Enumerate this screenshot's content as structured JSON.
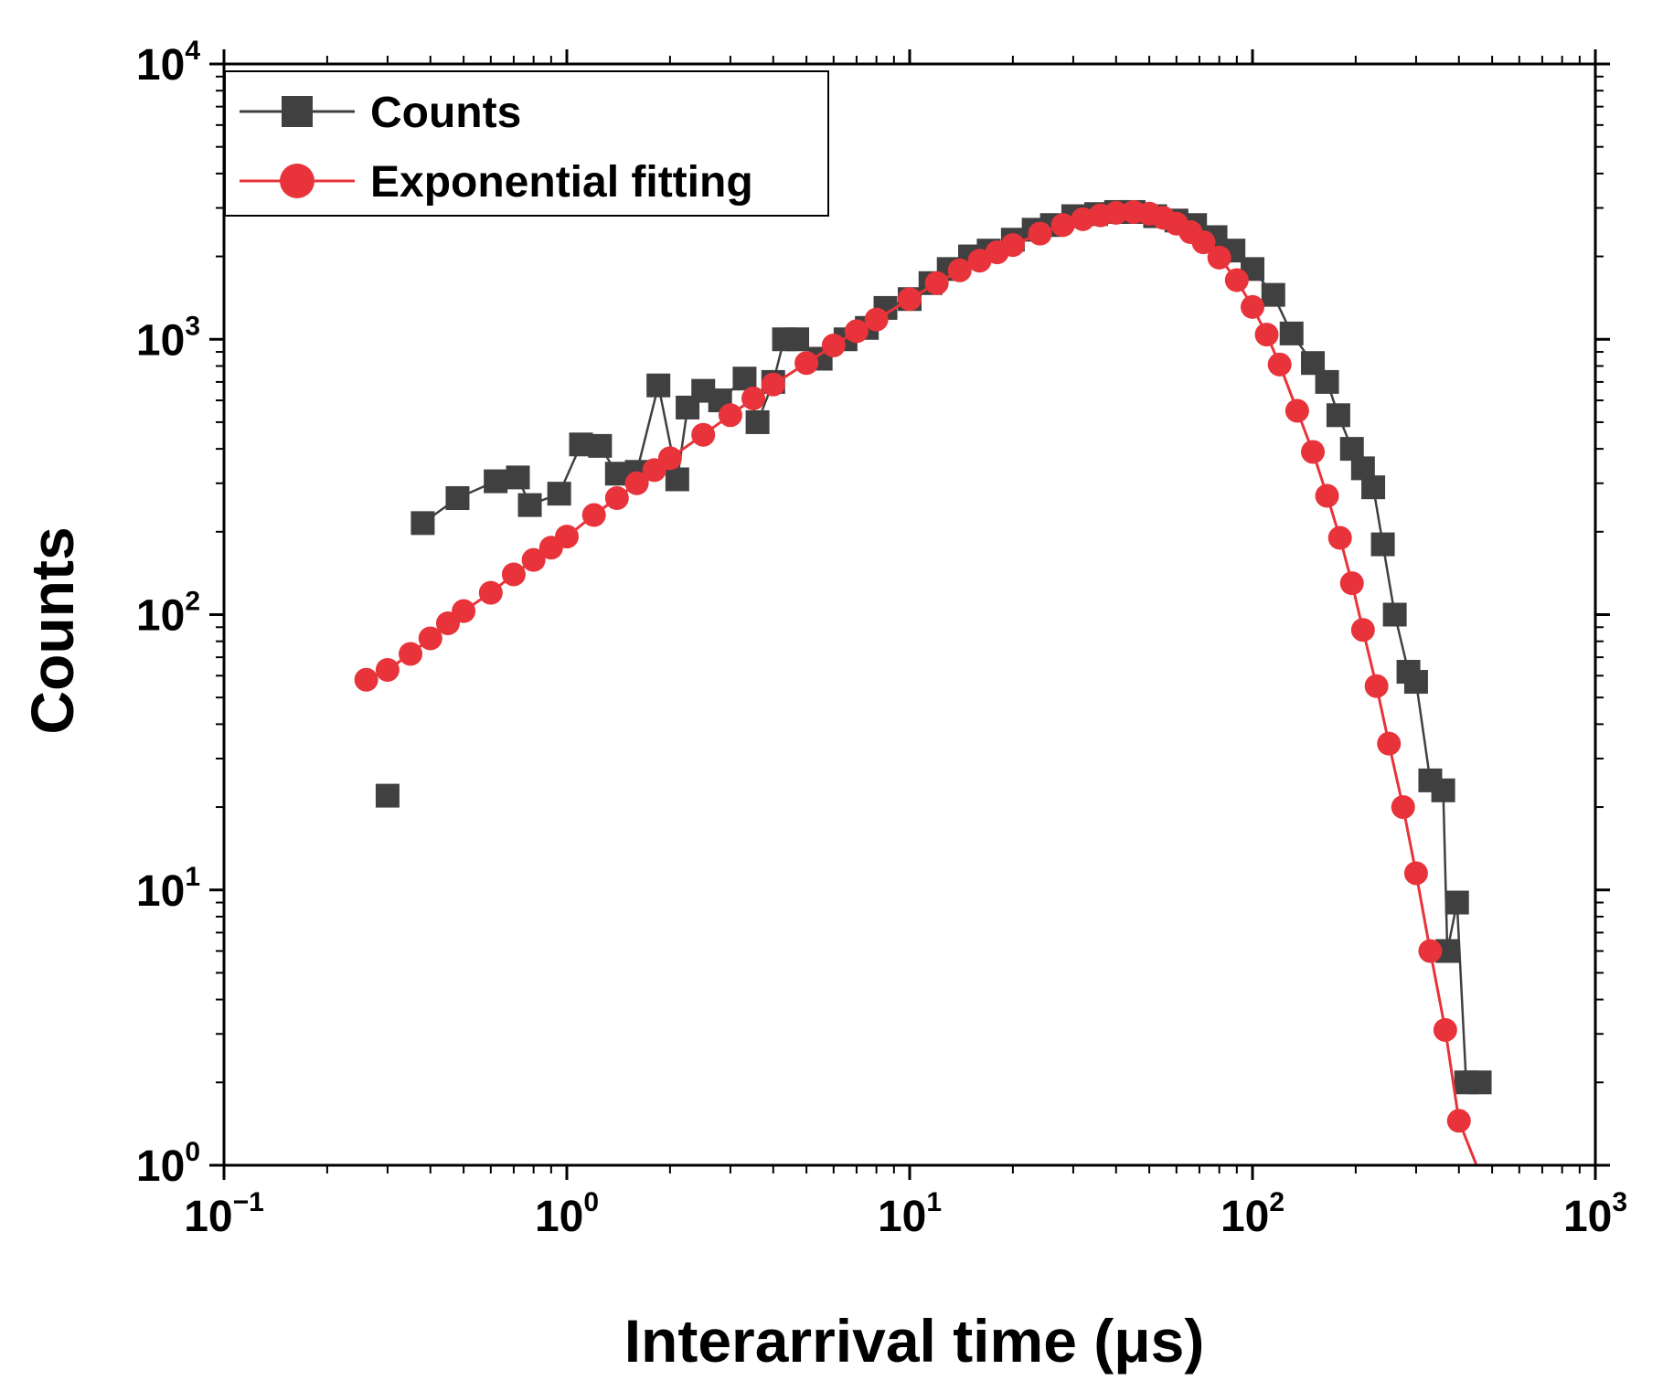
{
  "chart_data": {
    "type": "scatter",
    "xlabel": "Interarrival time (μs)",
    "ylabel": "Counts",
    "xscale": "log",
    "yscale": "log",
    "xlim": [
      0.1,
      1000
    ],
    "ylim": [
      1,
      10000
    ],
    "x_ticks": [
      {
        "base": "10",
        "exp": "−1"
      },
      {
        "base": "10",
        "exp": "0"
      },
      {
        "base": "10",
        "exp": "1"
      },
      {
        "base": "10",
        "exp": "2"
      },
      {
        "base": "10",
        "exp": "3"
      }
    ],
    "y_ticks": [
      {
        "base": "10",
        "exp": "0"
      },
      {
        "base": "10",
        "exp": "1"
      },
      {
        "base": "10",
        "exp": "2"
      },
      {
        "base": "10",
        "exp": "3"
      },
      {
        "base": "10",
        "exp": "4"
      }
    ],
    "legend": {
      "position": "top-left"
    },
    "series": [
      {
        "name": "Counts",
        "color": "#404040",
        "marker": "square",
        "points": [
          [
            0.3,
            22
          ],
          [
            0.38,
            215
          ],
          [
            0.48,
            265
          ],
          [
            0.62,
            305
          ],
          [
            0.72,
            315
          ],
          [
            0.78,
            250
          ],
          [
            0.95,
            275
          ],
          [
            1.1,
            415
          ],
          [
            1.25,
            410
          ],
          [
            1.4,
            325
          ],
          [
            1.6,
            330
          ],
          [
            1.85,
            680
          ],
          [
            2.1,
            310
          ],
          [
            2.25,
            565
          ],
          [
            2.5,
            650
          ],
          [
            2.8,
            600
          ],
          [
            3.3,
            720
          ],
          [
            3.6,
            500
          ],
          [
            4.0,
            700
          ],
          [
            4.3,
            1000
          ],
          [
            4.7,
            1000
          ],
          [
            5.5,
            850
          ],
          [
            6.5,
            1000
          ],
          [
            7.5,
            1100
          ],
          [
            8.5,
            1300
          ],
          [
            10,
            1400
          ],
          [
            11.5,
            1600
          ],
          [
            13,
            1800
          ],
          [
            15,
            2000
          ],
          [
            17,
            2100
          ],
          [
            20,
            2300
          ],
          [
            23,
            2500
          ],
          [
            26,
            2600
          ],
          [
            30,
            2800
          ],
          [
            35,
            2850
          ],
          [
            40,
            2900
          ],
          [
            45,
            2900
          ],
          [
            52,
            2800
          ],
          [
            60,
            2700
          ],
          [
            68,
            2600
          ],
          [
            78,
            2350
          ],
          [
            88,
            2100
          ],
          [
            100,
            1800
          ],
          [
            115,
            1450
          ],
          [
            130,
            1050
          ],
          [
            150,
            820
          ],
          [
            165,
            700
          ],
          [
            178,
            530
          ],
          [
            195,
            400
          ],
          [
            210,
            340
          ],
          [
            225,
            290
          ],
          [
            240,
            180
          ],
          [
            260,
            100
          ],
          [
            285,
            62
          ],
          [
            300,
            57
          ],
          [
            330,
            25
          ],
          [
            360,
            23
          ],
          [
            370,
            6
          ],
          [
            395,
            9
          ],
          [
            420,
            2
          ],
          [
            460,
            2
          ]
        ]
      },
      {
        "name": "Exponential fitting",
        "color": "#e8333a",
        "marker": "circle",
        "points": [
          [
            0.26,
            58
          ],
          [
            0.3,
            63
          ],
          [
            0.35,
            72
          ],
          [
            0.4,
            82
          ],
          [
            0.45,
            93
          ],
          [
            0.5,
            103
          ],
          [
            0.6,
            120
          ],
          [
            0.7,
            140
          ],
          [
            0.8,
            158
          ],
          [
            0.9,
            175
          ],
          [
            1.0,
            192
          ],
          [
            1.2,
            230
          ],
          [
            1.4,
            265
          ],
          [
            1.6,
            300
          ],
          [
            1.8,
            335
          ],
          [
            2.0,
            370
          ],
          [
            2.5,
            450
          ],
          [
            3.0,
            530
          ],
          [
            3.5,
            610
          ],
          [
            4.0,
            685
          ],
          [
            5.0,
            820
          ],
          [
            6.0,
            950
          ],
          [
            7.0,
            1070
          ],
          [
            8.0,
            1180
          ],
          [
            10,
            1400
          ],
          [
            12,
            1600
          ],
          [
            14,
            1780
          ],
          [
            16,
            1930
          ],
          [
            18,
            2070
          ],
          [
            20,
            2200
          ],
          [
            24,
            2420
          ],
          [
            28,
            2600
          ],
          [
            32,
            2730
          ],
          [
            36,
            2820
          ],
          [
            40,
            2880
          ],
          [
            45,
            2900
          ],
          [
            50,
            2860
          ],
          [
            55,
            2760
          ],
          [
            60,
            2630
          ],
          [
            66,
            2450
          ],
          [
            72,
            2250
          ],
          [
            80,
            1980
          ],
          [
            90,
            1640
          ],
          [
            100,
            1310
          ],
          [
            110,
            1040
          ],
          [
            120,
            810
          ],
          [
            135,
            550
          ],
          [
            150,
            390
          ],
          [
            165,
            270
          ],
          [
            180,
            190
          ],
          [
            195,
            130
          ],
          [
            210,
            88
          ],
          [
            230,
            55
          ],
          [
            250,
            34
          ],
          [
            275,
            20
          ],
          [
            300,
            11.5
          ],
          [
            330,
            6.0
          ],
          [
            365,
            3.1
          ],
          [
            400,
            1.45
          ]
        ]
      }
    ],
    "fit_line_end": [
      450,
      1.0
    ]
  }
}
